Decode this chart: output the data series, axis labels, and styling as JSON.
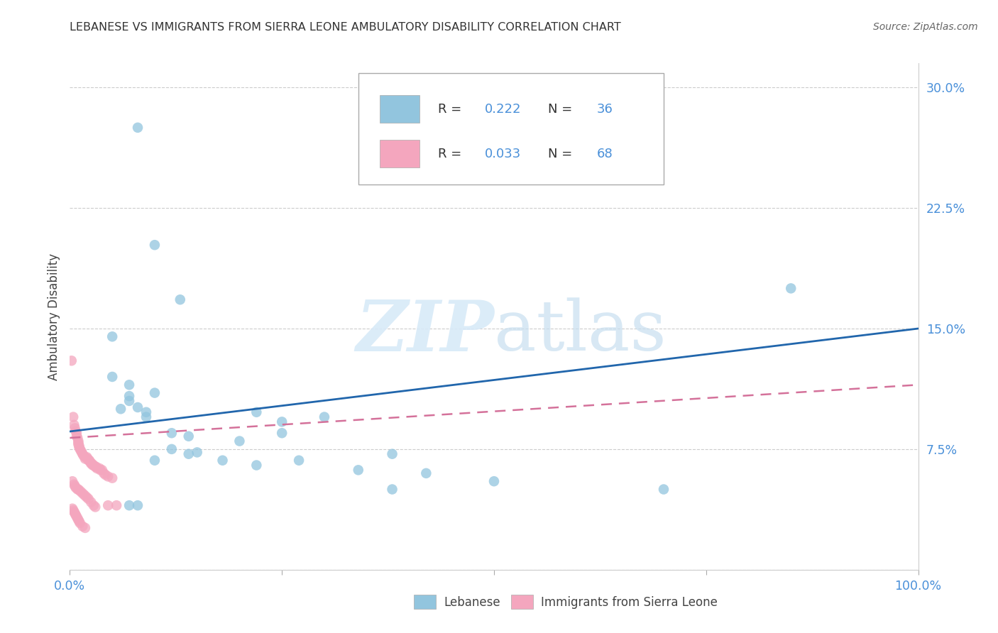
{
  "title": "LEBANESE VS IMMIGRANTS FROM SIERRA LEONE AMBULATORY DISABILITY CORRELATION CHART",
  "source": "Source: ZipAtlas.com",
  "ylabel": "Ambulatory Disability",
  "watermark": "ZIPatlas",
  "legend_r1": "R = ",
  "legend_v1": "0.222",
  "legend_n1_label": "N = ",
  "legend_n1": "36",
  "legend_r2": "R = ",
  "legend_v2": "0.033",
  "legend_n2_label": "N = ",
  "legend_n2": "68",
  "yticks": [
    0.0,
    0.075,
    0.15,
    0.225,
    0.3
  ],
  "ytick_labels": [
    "",
    "7.5%",
    "15.0%",
    "22.5%",
    "30.0%"
  ],
  "xlim": [
    0.0,
    1.0
  ],
  "ylim": [
    0.0,
    0.315
  ],
  "blue_color": "#92c5de",
  "blue_edge_color": "#92c5de",
  "pink_color": "#f4a6be",
  "pink_edge_color": "#f4a6be",
  "trendline_blue_color": "#2166ac",
  "trendline_pink_color": "#d4719a",
  "background_color": "#ffffff",
  "grid_color": "#cccccc",
  "tick_label_color": "#4a90d9",
  "text_color": "#4a4a4a",
  "legend_text_color": "#4a90d9",
  "blue_points_x": [
    0.05,
    0.08,
    0.1,
    0.13,
    0.05,
    0.07,
    0.07,
    0.08,
    0.09,
    0.12,
    0.14,
    0.15,
    0.2,
    0.22,
    0.25,
    0.27,
    0.3,
    0.34,
    0.38,
    0.42,
    0.5,
    0.7,
    0.85,
    0.06,
    0.07,
    0.1,
    0.12,
    0.14,
    0.22,
    0.25,
    0.38,
    0.07,
    0.08,
    0.09,
    0.1,
    0.18
  ],
  "blue_points_y": [
    0.145,
    0.275,
    0.202,
    0.168,
    0.12,
    0.115,
    0.105,
    0.101,
    0.098,
    0.085,
    0.083,
    0.073,
    0.08,
    0.065,
    0.092,
    0.068,
    0.095,
    0.062,
    0.05,
    0.06,
    0.055,
    0.05,
    0.175,
    0.1,
    0.108,
    0.11,
    0.075,
    0.072,
    0.098,
    0.085,
    0.072,
    0.04,
    0.04,
    0.095,
    0.068,
    0.068
  ],
  "pink_points_x": [
    0.002,
    0.004,
    0.005,
    0.006,
    0.007,
    0.008,
    0.008,
    0.009,
    0.01,
    0.01,
    0.01,
    0.011,
    0.011,
    0.012,
    0.013,
    0.014,
    0.015,
    0.016,
    0.018,
    0.018,
    0.02,
    0.021,
    0.022,
    0.023,
    0.024,
    0.025,
    0.026,
    0.027,
    0.028,
    0.03,
    0.031,
    0.032,
    0.035,
    0.036,
    0.038,
    0.04,
    0.042,
    0.045,
    0.05,
    0.055,
    0.003,
    0.005,
    0.006,
    0.007,
    0.009,
    0.01,
    0.012,
    0.014,
    0.016,
    0.018,
    0.02,
    0.022,
    0.025,
    0.028,
    0.03,
    0.003,
    0.004,
    0.005,
    0.006,
    0.007,
    0.008,
    0.009,
    0.01,
    0.011,
    0.012,
    0.015,
    0.018,
    0.045
  ],
  "pink_points_y": [
    0.13,
    0.095,
    0.09,
    0.088,
    0.086,
    0.085,
    0.083,
    0.082,
    0.08,
    0.079,
    0.078,
    0.077,
    0.076,
    0.075,
    0.074,
    0.073,
    0.072,
    0.071,
    0.07,
    0.069,
    0.07,
    0.069,
    0.068,
    0.068,
    0.067,
    0.066,
    0.066,
    0.065,
    0.065,
    0.064,
    0.064,
    0.063,
    0.063,
    0.062,
    0.062,
    0.06,
    0.059,
    0.058,
    0.057,
    0.04,
    0.055,
    0.053,
    0.052,
    0.051,
    0.05,
    0.05,
    0.049,
    0.048,
    0.047,
    0.046,
    0.045,
    0.044,
    0.042,
    0.04,
    0.039,
    0.038,
    0.037,
    0.036,
    0.035,
    0.034,
    0.033,
    0.032,
    0.031,
    0.03,
    0.029,
    0.027,
    0.026,
    0.04
  ],
  "blue_trend_y_start": 0.086,
  "blue_trend_y_end": 0.15,
  "pink_trend_y_start": 0.082,
  "pink_trend_y_end": 0.115,
  "legend_label_lebanese": "Lebanese",
  "legend_label_sierra": "Immigrants from Sierra Leone"
}
